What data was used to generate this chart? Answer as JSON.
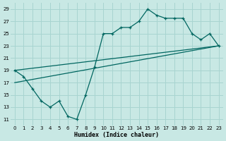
{
  "xlabel": "Humidex (Indice chaleur)",
  "background_color": "#c8e8e4",
  "grid_color": "#a8d4d0",
  "line_color": "#006660",
  "xlim": [
    -0.5,
    23.5
  ],
  "ylim": [
    10,
    30
  ],
  "xticks": [
    0,
    1,
    2,
    3,
    4,
    5,
    6,
    7,
    8,
    9,
    10,
    11,
    12,
    13,
    14,
    15,
    16,
    17,
    18,
    19,
    20,
    21,
    22,
    23
  ],
  "yticks": [
    11,
    13,
    15,
    17,
    19,
    21,
    23,
    25,
    27,
    29
  ],
  "curve_x": [
    0,
    1,
    2,
    3,
    4,
    5,
    6,
    7,
    8,
    9,
    10,
    11,
    12,
    13,
    14,
    15,
    16,
    17,
    18,
    19,
    20,
    21,
    22,
    23
  ],
  "curve_y": [
    19,
    18,
    16,
    14,
    13,
    14,
    11.5,
    11,
    15,
    19.5,
    25,
    25,
    26,
    26,
    27,
    29,
    28,
    27.5,
    27.5,
    27.5,
    25,
    24,
    25,
    23
  ],
  "line1_x": [
    0,
    23
  ],
  "line1_y": [
    19,
    23
  ],
  "line2_x": [
    0,
    23
  ],
  "line2_y": [
    17,
    23
  ]
}
